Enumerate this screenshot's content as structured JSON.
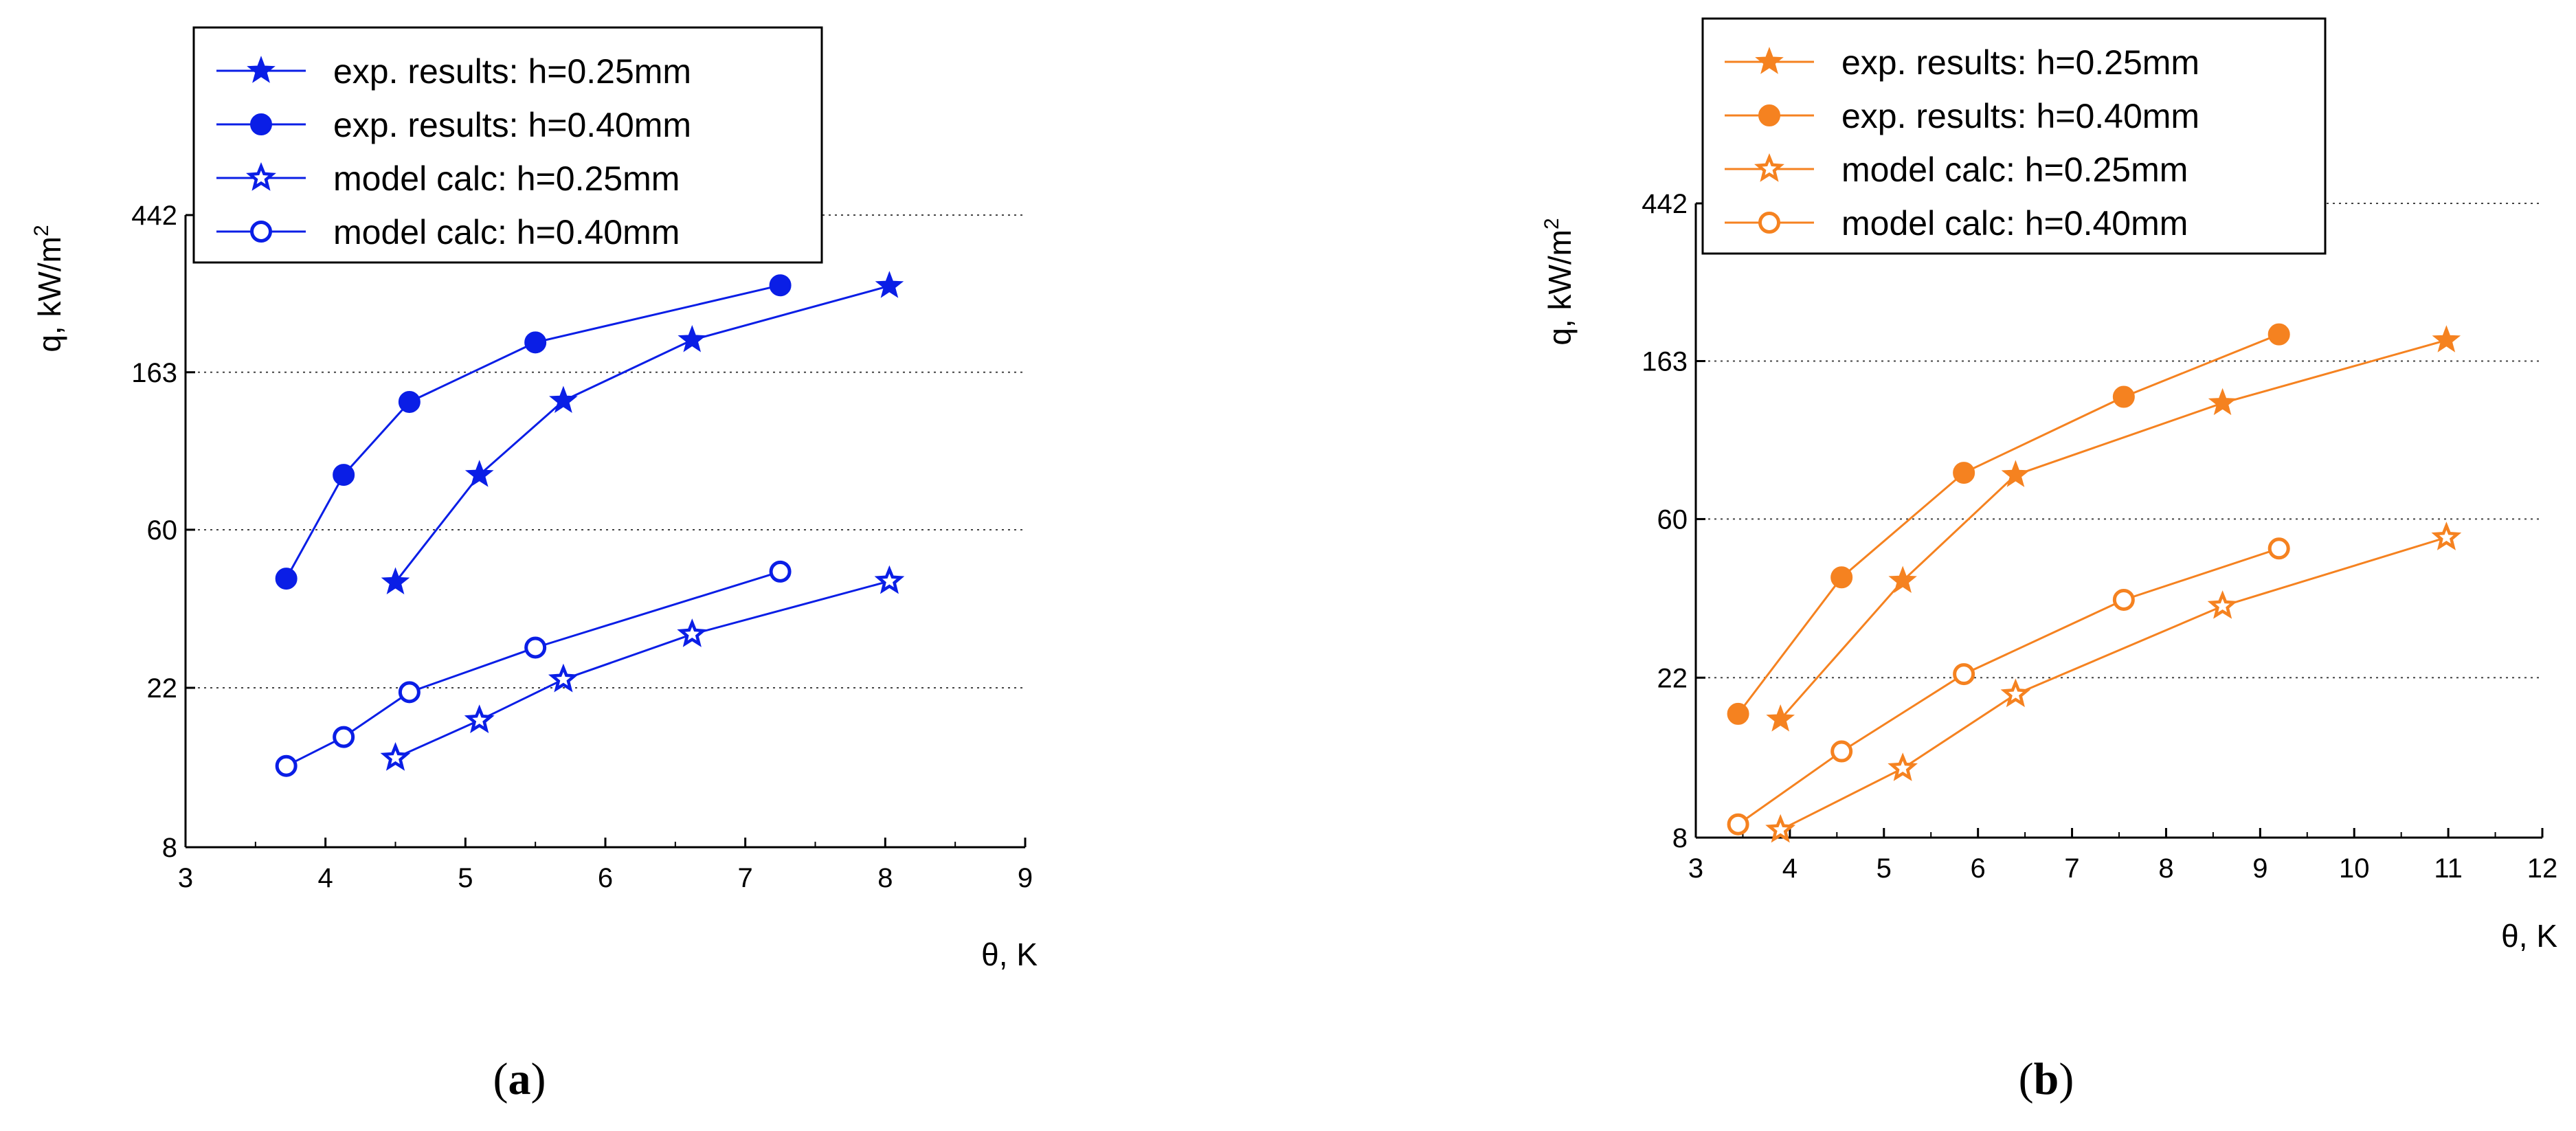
{
  "chart_data": [
    {
      "type": "line",
      "panel_label": "a",
      "color": "#0a1ee6",
      "xlabel": "θ, K",
      "ylabel": "q, kW/m",
      "ylabel_sup": "2",
      "x_scale": "linear",
      "y_scale": "log",
      "xlim": [
        3,
        9
      ],
      "ylim": [
        8,
        442
      ],
      "x_ticks": [
        3,
        4,
        5,
        6,
        7,
        8,
        9
      ],
      "y_ticks": [
        8,
        22,
        60,
        163,
        442
      ],
      "grid": "horizontal dotted",
      "legend_position": "top-left",
      "series": [
        {
          "name": "exp. results: h=0.25mm",
          "marker": "star",
          "filled": true,
          "x": [
            4.5,
            5.1,
            5.7,
            6.62,
            8.03
          ],
          "y": [
            43,
            85,
            136,
            200,
            282
          ]
        },
        {
          "name": "exp. results: h=0.40mm",
          "marker": "circle",
          "filled": true,
          "x": [
            3.72,
            4.13,
            4.6,
            5.5,
            7.25
          ],
          "y": [
            44,
            85,
            135,
            197,
            283
          ]
        },
        {
          "name": "model calc: h=0.25mm",
          "marker": "star",
          "filled": false,
          "x": [
            4.5,
            5.1,
            5.7,
            6.62,
            8.03
          ],
          "y": [
            14.1,
            17.9,
            23.2,
            30.9,
            43.3
          ]
        },
        {
          "name": "model calc: h=0.40mm",
          "marker": "circle",
          "filled": false,
          "x": [
            3.72,
            4.13,
            4.6,
            5.5,
            7.25
          ],
          "y": [
            13.4,
            16.1,
            21.4,
            28.4,
            46.0
          ]
        }
      ]
    },
    {
      "type": "line",
      "panel_label": "b",
      "color": "#f58220",
      "xlabel": "θ, K",
      "ylabel": "q, kW/m",
      "ylabel_sup": "2",
      "x_scale": "linear",
      "y_scale": "log",
      "xlim": [
        3,
        12
      ],
      "ylim": [
        8,
        442
      ],
      "x_ticks": [
        3,
        4,
        5,
        6,
        7,
        8,
        9,
        10,
        11,
        12
      ],
      "y_ticks": [
        8,
        22,
        60,
        163,
        442
      ],
      "grid": "horizontal dotted",
      "legend_position": "top-left",
      "series": [
        {
          "name": "exp. results: h=0.25mm",
          "marker": "star",
          "filled": true,
          "x": [
            3.9,
            5.2,
            6.4,
            8.6,
            10.98
          ],
          "y": [
            16.9,
            40.6,
            79.3,
            125,
            186
          ]
        },
        {
          "name": "exp. results: h=0.40mm",
          "marker": "circle",
          "filled": true,
          "x": [
            3.45,
            4.55,
            5.85,
            7.55,
            9.2
          ],
          "y": [
            17.5,
            41.5,
            80.4,
            130,
            193
          ]
        },
        {
          "name": "model calc: h=0.25mm",
          "marker": "star",
          "filled": false,
          "x": [
            3.9,
            5.2,
            6.4,
            8.6,
            10.98
          ],
          "y": [
            8.4,
            12.4,
            19.8,
            34.6,
            53.4
          ]
        },
        {
          "name": "model calc: h=0.40mm",
          "marker": "circle",
          "filled": false,
          "x": [
            3.45,
            4.55,
            5.85,
            7.55,
            9.2
          ],
          "y": [
            8.7,
            13.8,
            22.5,
            36.0,
            49.8
          ]
        }
      ]
    }
  ]
}
